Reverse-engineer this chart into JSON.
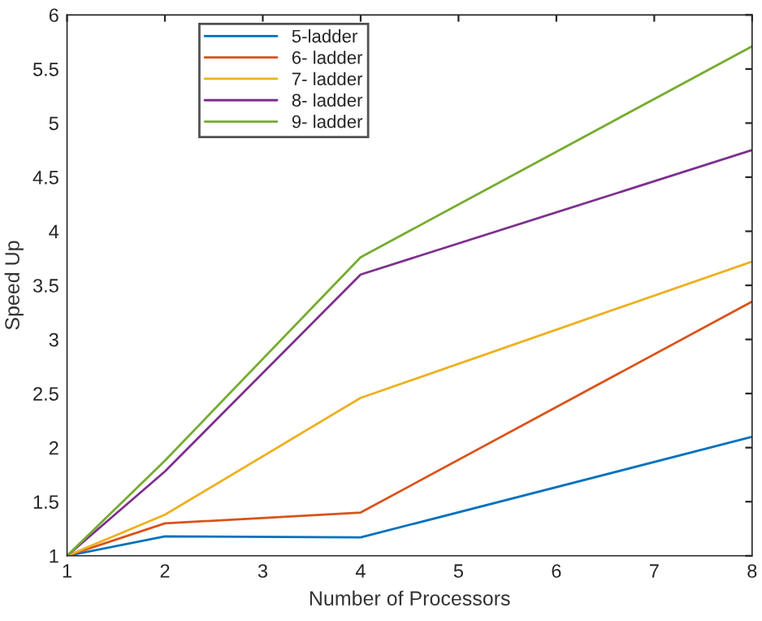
{
  "chart_data": {
    "type": "line",
    "xlabel": "Number of Processors",
    "ylabel": "Speed Up",
    "x": [
      1,
      2,
      4,
      8
    ],
    "series": [
      {
        "name": "5-ladder",
        "color": "#0072bd",
        "values": [
          1,
          1.18,
          1.17,
          2.1
        ]
      },
      {
        "name": "6- ladder",
        "color": "#d95319",
        "values": [
          1,
          1.3,
          1.4,
          3.35
        ]
      },
      {
        "name": "7- ladder",
        "color": "#edb120",
        "values": [
          1,
          1.38,
          2.46,
          3.72
        ]
      },
      {
        "name": "8- ladder",
        "color": "#7e2f8e",
        "values": [
          1,
          1.78,
          3.6,
          4.75
        ]
      },
      {
        "name": "9- ladder",
        "color": "#77ac30",
        "values": [
          1,
          1.88,
          3.76,
          5.71
        ]
      }
    ],
    "xlim": [
      1,
      8
    ],
    "xticks": [
      1,
      2,
      3,
      4,
      5,
      6,
      7,
      8
    ],
    "ylim": [
      1,
      6
    ],
    "yticks": [
      1,
      1.5,
      2,
      2.5,
      3,
      3.5,
      4,
      4.5,
      5,
      5.5,
      6
    ],
    "grid": false,
    "legend": "top left",
    "marker": "none",
    "line_style": "solid"
  }
}
